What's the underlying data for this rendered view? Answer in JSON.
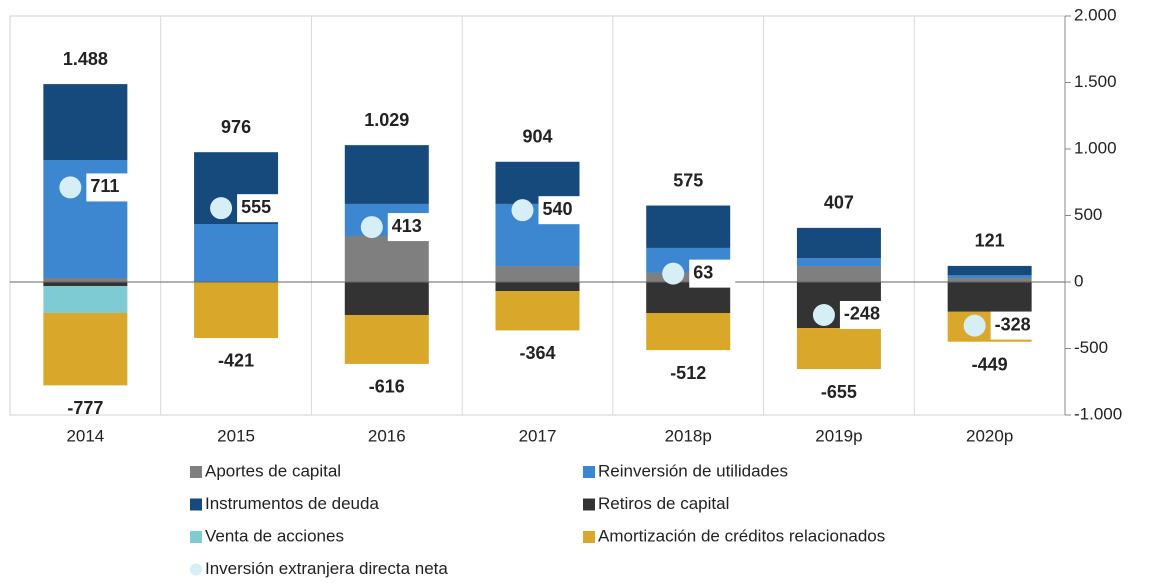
{
  "chart_data": {
    "type": "bar",
    "stacked": true,
    "categories": [
      "2014",
      "2015",
      "2016",
      "2017",
      "2018p",
      "2019p",
      "2020p"
    ],
    "series": [
      {
        "name": "Aportes de capital",
        "color": "#7f7f7f",
        "values": [
          30,
          0,
          346,
          120,
          68,
          120,
          30
        ]
      },
      {
        "name": "Reinversión de utilidades",
        "color": "#3c87cf",
        "values": [
          887,
          436,
          241,
          467,
          188,
          60,
          20
        ]
      },
      {
        "name": "Instrumentos de deuda",
        "color": "#174a7c",
        "values": [
          571,
          540,
          442,
          317,
          319,
          227,
          71
        ]
      },
      {
        "name": "Retiros de capital",
        "color": "#333333",
        "values": [
          -30,
          0,
          -248,
          -68,
          -233,
          -346,
          -224
        ]
      },
      {
        "name": "Venta de acciones",
        "color": "#7ecbd3",
        "values": [
          -203,
          0,
          0,
          0,
          0,
          0,
          0
        ]
      },
      {
        "name": "Amortización de créditos relacionados",
        "color": "#d9a82a",
        "values": [
          -544,
          -421,
          -368,
          -296,
          -279,
          -309,
          -225
        ]
      },
      {
        "name": "Inversión extranjera directa neta",
        "type": "scatter",
        "color": "#d6eef5",
        "values": [
          711,
          555,
          413,
          540,
          63,
          -248,
          -328
        ]
      }
    ],
    "totals_positive": {
      "values": [
        1488,
        976,
        1029,
        904,
        575,
        407,
        121
      ],
      "value_labels": [
        "1.488",
        "976",
        "1.029",
        "904",
        "575",
        "407",
        "121"
      ]
    },
    "totals_negative": {
      "values": [
        -777,
        -421,
        -616,
        -364,
        -512,
        -655,
        -449
      ]
    },
    "ylim": [
      -1000,
      2000
    ],
    "yticks": [
      {
        "value": 2000,
        "label": "2.000"
      },
      {
        "value": 1500,
        "label": "1.500"
      },
      {
        "value": 1000,
        "label": "1.000"
      },
      500,
      0,
      -500,
      {
        "value": -1000,
        "label": "-1.000"
      }
    ],
    "y_axis_side": "right",
    "grid": false
  }
}
